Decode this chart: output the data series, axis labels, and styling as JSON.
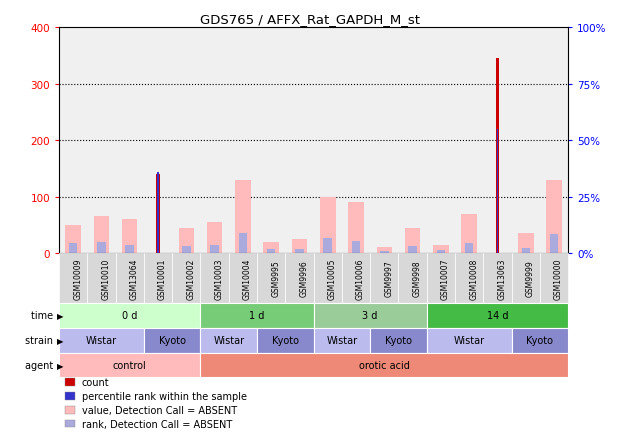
{
  "title": "GDS765 / AFFX_Rat_GAPDH_M_st",
  "samples": [
    "GSM10009",
    "GSM10010",
    "GSM13064",
    "GSM10001",
    "GSM10002",
    "GSM10003",
    "GSM10004",
    "GSM9995",
    "GSM9996",
    "GSM10005",
    "GSM10006",
    "GSM9997",
    "GSM9998",
    "GSM10007",
    "GSM10008",
    "GSM13063",
    "GSM9999",
    "GSM10000"
  ],
  "count": [
    0,
    0,
    0,
    140,
    0,
    0,
    0,
    0,
    0,
    0,
    0,
    0,
    0,
    0,
    0,
    345,
    0,
    0
  ],
  "percentile": [
    0,
    0,
    0,
    36,
    0,
    0,
    0,
    0,
    0,
    0,
    0,
    0,
    0,
    0,
    0,
    55,
    0,
    0
  ],
  "value_absent": [
    50,
    65,
    60,
    0,
    45,
    55,
    130,
    20,
    25,
    100,
    90,
    10,
    45,
    15,
    70,
    0,
    35,
    130
  ],
  "rank_absent": [
    17,
    20,
    15,
    0,
    12,
    15,
    35,
    7,
    8,
    27,
    22,
    3,
    13,
    5,
    18,
    0,
    9,
    33
  ],
  "count_color": "#cc0000",
  "percentile_color": "#3333cc",
  "value_absent_color": "#ffbbbb",
  "rank_absent_color": "#aaaadd",
  "ylim_left": [
    0,
    400
  ],
  "ylim_right": [
    0,
    100
  ],
  "yticks_left": [
    0,
    100,
    200,
    300,
    400
  ],
  "yticks_right": [
    0,
    25,
    50,
    75,
    100
  ],
  "time_groups": [
    {
      "label": "0 d",
      "start": 0,
      "end": 5,
      "color": "#ccffcc"
    },
    {
      "label": "1 d",
      "start": 5,
      "end": 9,
      "color": "#77cc77"
    },
    {
      "label": "3 d",
      "start": 9,
      "end": 13,
      "color": "#99cc99"
    },
    {
      "label": "14 d",
      "start": 13,
      "end": 18,
      "color": "#44bb44"
    }
  ],
  "strain_groups": [
    {
      "label": "Wistar",
      "start": 0,
      "end": 3,
      "color": "#bbbbee"
    },
    {
      "label": "Kyoto",
      "start": 3,
      "end": 5,
      "color": "#8888cc"
    },
    {
      "label": "Wistar",
      "start": 5,
      "end": 7,
      "color": "#bbbbee"
    },
    {
      "label": "Kyoto",
      "start": 7,
      "end": 9,
      "color": "#8888cc"
    },
    {
      "label": "Wistar",
      "start": 9,
      "end": 11,
      "color": "#bbbbee"
    },
    {
      "label": "Kyoto",
      "start": 11,
      "end": 13,
      "color": "#8888cc"
    },
    {
      "label": "Wistar",
      "start": 13,
      "end": 16,
      "color": "#bbbbee"
    },
    {
      "label": "Kyoto",
      "start": 16,
      "end": 18,
      "color": "#8888cc"
    }
  ],
  "agent_groups": [
    {
      "label": "control",
      "start": 0,
      "end": 5,
      "color": "#ffbbbb"
    },
    {
      "label": "orotic acid",
      "start": 5,
      "end": 18,
      "color": "#ee8877"
    }
  ],
  "dotted_lines": [
    100,
    200,
    300
  ],
  "legend_items": [
    {
      "label": "count",
      "color": "#cc0000"
    },
    {
      "label": "percentile rank within the sample",
      "color": "#3333cc"
    },
    {
      "label": "value, Detection Call = ABSENT",
      "color": "#ffbbbb"
    },
    {
      "label": "rank, Detection Call = ABSENT",
      "color": "#aaaadd"
    }
  ]
}
